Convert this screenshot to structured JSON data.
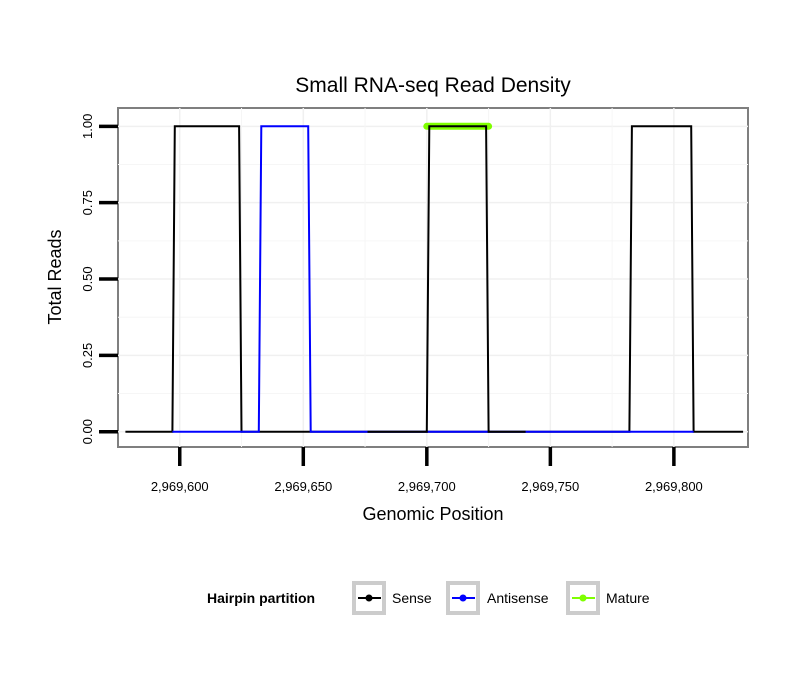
{
  "chart_data": {
    "type": "line",
    "title": "Small RNA-seq Read Density",
    "xlabel": "Genomic Position",
    "ylabel": "Total Reads",
    "xlim": [
      2969575,
      2969830
    ],
    "ylim": [
      -0.05,
      1.06
    ],
    "x_ticks": [
      2969600,
      2969650,
      2969700,
      2969750,
      2969800
    ],
    "x_tick_labels": [
      "2,969,600",
      "2,969,650",
      "2,969,700",
      "2,969,750",
      "2,969,800"
    ],
    "y_ticks": [
      0,
      0.25,
      0.5,
      0.75,
      1.0
    ],
    "y_tick_labels": [
      "0.00",
      "0.25",
      "0.50",
      "0.75",
      "1.00"
    ],
    "grid": true,
    "legend": {
      "title": "Hairpin partition",
      "position": "bottom",
      "entries": [
        "Sense",
        "Antisense",
        "Mature"
      ]
    },
    "series": [
      {
        "name": "Sense",
        "color": "#000000",
        "x": [
          2969578,
          2969597,
          2969598,
          2969624,
          2969625,
          2969731,
          2969782,
          2969783,
          2969807,
          2969808,
          2969828
        ],
        "y": [
          0,
          0,
          1,
          1,
          0,
          0,
          0,
          1,
          1,
          0,
          0
        ]
      },
      {
        "name": "Antisense",
        "color": "#0000ff",
        "x": [
          2969597,
          2969632,
          2969633,
          2969652,
          2969653,
          2969698,
          2969724,
          2969783,
          2969808
        ],
        "y": [
          0,
          0,
          1,
          1,
          0,
          0,
          0,
          0,
          0
        ]
      },
      {
        "name": "Mature",
        "color": "#7fff00",
        "x": [
          2969700,
          2969725
        ],
        "y": [
          1,
          1
        ]
      },
      {
        "name": "Sense",
        "color": "#000000",
        "x": [
          2969676,
          2969700,
          2969701,
          2969724,
          2969725,
          2969740
        ],
        "y": [
          0,
          0,
          1,
          1,
          0,
          0
        ]
      }
    ]
  }
}
